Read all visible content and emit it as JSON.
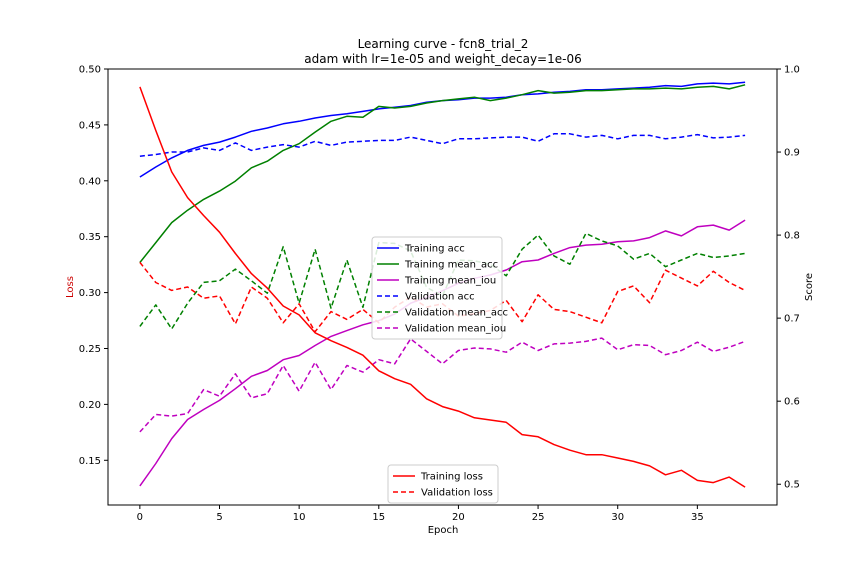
{
  "chart_data": {
    "type": "line",
    "title": "Learning curve - fcn8_trial_2",
    "subtitle": "adam with lr=1e-05 and weight_decay=1e-06",
    "xlabel": "Epoch",
    "ylabel_left": "Loss",
    "ylabel_right": "Score",
    "xlim": [
      -2,
      40
    ],
    "ylim_left": [
      0.11,
      0.5
    ],
    "ylim_right": [
      0.475,
      1.0
    ],
    "xticks": [
      0,
      5,
      10,
      15,
      20,
      25,
      30,
      35
    ],
    "yticks_left": [
      0.15,
      0.2,
      0.25,
      0.3,
      0.35,
      0.4,
      0.45,
      0.5
    ],
    "yticks_right": [
      0.5,
      0.6,
      0.7,
      0.8,
      0.9,
      1.0
    ],
    "ytick_labels_left": [
      "0.15",
      "0.20",
      "0.25",
      "0.30",
      "0.35",
      "0.40",
      "0.45",
      "0.50"
    ],
    "ytick_labels_right": [
      "0.5",
      "0.6",
      "0.7",
      "0.8",
      "0.9",
      "1.0"
    ],
    "loss_label_color": "#cc0000",
    "x": [
      0,
      1,
      2,
      3,
      4,
      5,
      6,
      7,
      8,
      9,
      10,
      11,
      12,
      13,
      14,
      15,
      16,
      17,
      18,
      19,
      20,
      21,
      22,
      23,
      24,
      25,
      26,
      27,
      28,
      29,
      30,
      31,
      32,
      33,
      34,
      35,
      36,
      37,
      38
    ],
    "series_left": [
      {
        "name": "Training loss",
        "color": "#ff0000",
        "style": "solid",
        "values": [
          0.484,
          0.445,
          0.408,
          0.385,
          0.369,
          0.354,
          0.335,
          0.317,
          0.304,
          0.288,
          0.28,
          0.264,
          0.257,
          0.251,
          0.244,
          0.23,
          0.223,
          0.218,
          0.205,
          0.198,
          0.194,
          0.188,
          0.186,
          0.184,
          0.173,
          0.171,
          0.164,
          0.159,
          0.155,
          0.155,
          0.152,
          0.149,
          0.145,
          0.137,
          0.141,
          0.132,
          0.13,
          0.135,
          0.126
        ]
      },
      {
        "name": "Validation loss",
        "color": "#ff0000",
        "style": "dashed",
        "values": [
          0.327,
          0.309,
          0.302,
          0.305,
          0.295,
          0.297,
          0.272,
          0.305,
          0.295,
          0.273,
          0.29,
          0.265,
          0.283,
          0.276,
          0.285,
          0.273,
          0.287,
          0.296,
          0.287,
          0.29,
          0.279,
          0.281,
          0.284,
          0.293,
          0.274,
          0.298,
          0.285,
          0.283,
          0.278,
          0.273,
          0.301,
          0.306,
          0.291,
          0.32,
          0.313,
          0.306,
          0.319,
          0.309,
          0.302
        ]
      }
    ],
    "series_right": [
      {
        "name": "Training acc",
        "color": "#0000ff",
        "style": "solid",
        "values": [
          0.87,
          0.882,
          0.893,
          0.902,
          0.908,
          0.912,
          0.918,
          0.925,
          0.929,
          0.934,
          0.937,
          0.941,
          0.944,
          0.946,
          0.949,
          0.952,
          0.954,
          0.956,
          0.96,
          0.962,
          0.963,
          0.965,
          0.965,
          0.966,
          0.969,
          0.97,
          0.972,
          0.973,
          0.975,
          0.975,
          0.976,
          0.977,
          0.978,
          0.98,
          0.979,
          0.982,
          0.983,
          0.982,
          0.984
        ]
      },
      {
        "name": "Training mean_acc",
        "color": "#008000",
        "style": "solid",
        "values": [
          0.767,
          0.791,
          0.815,
          0.83,
          0.843,
          0.853,
          0.865,
          0.881,
          0.889,
          0.902,
          0.91,
          0.924,
          0.937,
          0.943,
          0.942,
          0.955,
          0.953,
          0.955,
          0.959,
          0.962,
          0.964,
          0.966,
          0.962,
          0.965,
          0.969,
          0.974,
          0.971,
          0.972,
          0.974,
          0.974,
          0.975,
          0.976,
          0.976,
          0.977,
          0.976,
          0.978,
          0.979,
          0.976,
          0.981
        ]
      },
      {
        "name": "Training mean_iou",
        "color": "#bf00bf",
        "style": "solid",
        "values": [
          0.498,
          0.525,
          0.555,
          0.578,
          0.59,
          0.601,
          0.615,
          0.63,
          0.637,
          0.65,
          0.655,
          0.667,
          0.678,
          0.685,
          0.692,
          0.697,
          0.705,
          0.718,
          0.725,
          0.733,
          0.742,
          0.748,
          0.752,
          0.758,
          0.768,
          0.77,
          0.778,
          0.785,
          0.788,
          0.789,
          0.792,
          0.793,
          0.797,
          0.805,
          0.799,
          0.81,
          0.812,
          0.806,
          0.818
        ]
      },
      {
        "name": "Validation acc",
        "color": "#0000ff",
        "style": "dashed",
        "values": [
          0.895,
          0.897,
          0.9,
          0.9,
          0.905,
          0.902,
          0.911,
          0.902,
          0.906,
          0.909,
          0.906,
          0.913,
          0.908,
          0.912,
          0.913,
          0.914,
          0.914,
          0.918,
          0.914,
          0.91,
          0.916,
          0.916,
          0.917,
          0.918,
          0.918,
          0.913,
          0.922,
          0.922,
          0.918,
          0.92,
          0.916,
          0.92,
          0.92,
          0.916,
          0.918,
          0.921,
          0.917,
          0.918,
          0.92
        ]
      },
      {
        "name": "Validation mean_acc",
        "color": "#008000",
        "style": "dashed",
        "values": [
          0.69,
          0.716,
          0.687,
          0.718,
          0.743,
          0.745,
          0.759,
          0.745,
          0.73,
          0.786,
          0.718,
          0.783,
          0.712,
          0.77,
          0.713,
          0.791,
          0.79,
          0.781,
          0.737,
          0.727,
          0.77,
          0.769,
          0.765,
          0.751,
          0.783,
          0.8,
          0.775,
          0.765,
          0.802,
          0.793,
          0.787,
          0.771,
          0.778,
          0.762,
          0.77,
          0.778,
          0.773,
          0.775,
          0.778
        ]
      },
      {
        "name": "Validation mean_iou",
        "color": "#bf00bf",
        "style": "dashed",
        "values": [
          0.563,
          0.584,
          0.582,
          0.585,
          0.614,
          0.606,
          0.633,
          0.604,
          0.609,
          0.643,
          0.612,
          0.647,
          0.614,
          0.643,
          0.635,
          0.65,
          0.645,
          0.675,
          0.66,
          0.645,
          0.661,
          0.664,
          0.663,
          0.659,
          0.671,
          0.661,
          0.669,
          0.67,
          0.672,
          0.676,
          0.662,
          0.668,
          0.667,
          0.656,
          0.661,
          0.671,
          0.66,
          0.665,
          0.672
        ]
      }
    ],
    "legend_left": {
      "placement": "lower center"
    },
    "legend_right": {
      "placement": "center"
    }
  }
}
